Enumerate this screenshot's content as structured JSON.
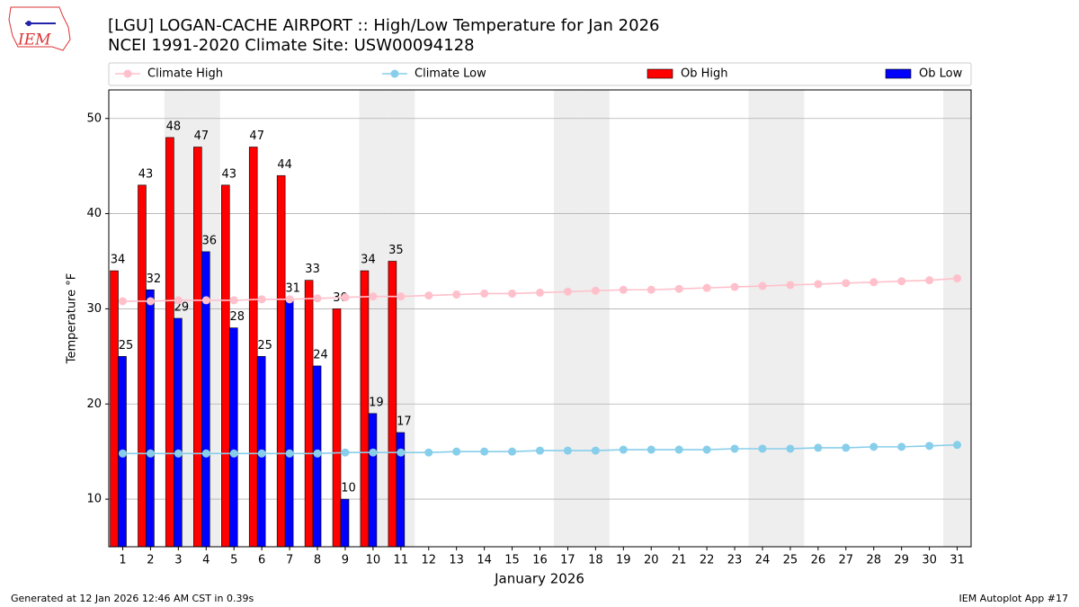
{
  "chart_data": {
    "type": "bar",
    "title": "[LGU] LOGAN-CACHE AIRPORT :: High/Low Temperature for Jan 2026",
    "subtitle": "NCEI 1991-2020 Climate Site: USW00094128",
    "logo_text": "IEM",
    "x_label": "January 2026",
    "y_label": "Temperature °F",
    "footer_left": "Generated at 12 Jan 2026 12:46 AM CST in 0.39s",
    "footer_right": "IEM Autoplot App #17",
    "x": [
      1,
      2,
      3,
      4,
      5,
      6,
      7,
      8,
      9,
      10,
      11,
      12,
      13,
      14,
      15,
      16,
      17,
      18,
      19,
      20,
      21,
      22,
      23,
      24,
      25,
      26,
      27,
      28,
      29,
      30,
      31
    ],
    "xlim": [
      0.5,
      31.5
    ],
    "xticks": [
      1,
      2,
      3,
      4,
      5,
      6,
      7,
      8,
      9,
      10,
      11,
      12,
      13,
      14,
      15,
      16,
      17,
      18,
      19,
      20,
      21,
      22,
      23,
      24,
      25,
      26,
      27,
      28,
      29,
      30,
      31
    ],
    "ylim": [
      5,
      53
    ],
    "yticks": [
      10,
      20,
      30,
      40,
      50
    ],
    "grid": true,
    "shaded_days": [
      3,
      4,
      10,
      11,
      17,
      18,
      24,
      25,
      31
    ],
    "series": [
      {
        "name": "Climate High",
        "kind": "line",
        "color": "#ffc0cb",
        "values": [
          30.8,
          30.8,
          30.9,
          30.9,
          30.9,
          31.0,
          31.0,
          31.1,
          31.2,
          31.3,
          31.3,
          31.4,
          31.5,
          31.6,
          31.6,
          31.7,
          31.8,
          31.9,
          32.0,
          32.0,
          32.1,
          32.2,
          32.3,
          32.4,
          32.5,
          32.6,
          32.7,
          32.8,
          32.9,
          33.0,
          33.2
        ]
      },
      {
        "name": "Climate Low",
        "kind": "line",
        "color": "#87ceeb",
        "values": [
          14.8,
          14.8,
          14.8,
          14.8,
          14.8,
          14.8,
          14.8,
          14.8,
          14.9,
          14.9,
          14.9,
          14.9,
          15.0,
          15.0,
          15.0,
          15.1,
          15.1,
          15.1,
          15.2,
          15.2,
          15.2,
          15.2,
          15.3,
          15.3,
          15.3,
          15.4,
          15.4,
          15.5,
          15.5,
          15.6,
          15.7
        ]
      },
      {
        "name": "Ob High",
        "kind": "bar",
        "color": "#ff0000",
        "values": [
          34,
          43,
          48,
          47,
          43,
          47,
          44,
          33,
          30,
          34,
          35,
          null,
          null,
          null,
          null,
          null,
          null,
          null,
          null,
          null,
          null,
          null,
          null,
          null,
          null,
          null,
          null,
          null,
          null,
          null,
          null
        ]
      },
      {
        "name": "Ob Low",
        "kind": "bar",
        "color": "#0000ff",
        "values": [
          25,
          32,
          29,
          36,
          28,
          25,
          31,
          24,
          10,
          19,
          17,
          null,
          null,
          null,
          null,
          null,
          null,
          null,
          null,
          null,
          null,
          null,
          null,
          null,
          null,
          null,
          null,
          null,
          null,
          null,
          null
        ]
      }
    ]
  }
}
